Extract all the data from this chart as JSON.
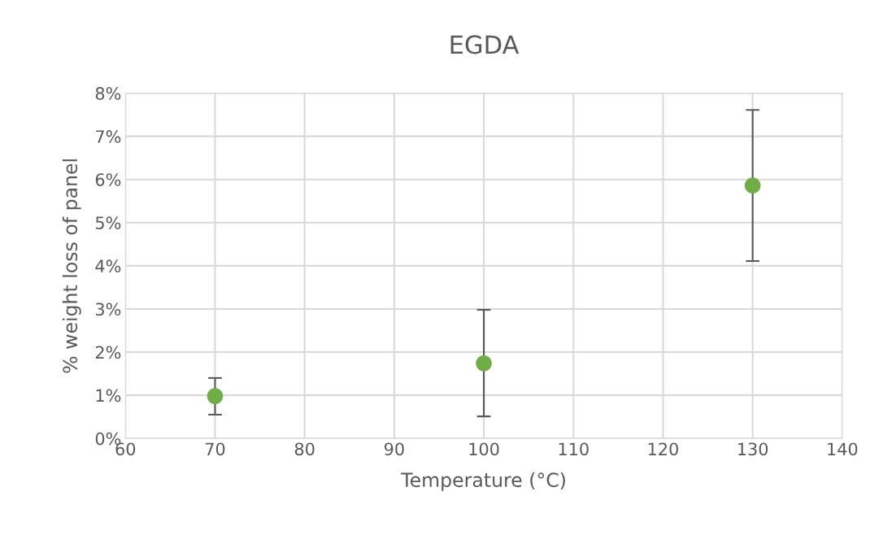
{
  "chart_data": {
    "type": "scatter",
    "title": "EGDA",
    "xlabel": "Temperature (°C)",
    "ylabel": "% weight loss of panel",
    "x": [
      70,
      100,
      130
    ],
    "series": [
      {
        "color": "#70ad47",
        "values": [
          0.98,
          1.74,
          5.86
        ],
        "errors": [
          [
            0.55,
            1.4
          ],
          [
            0.51,
            2.98
          ],
          [
            4.11,
            7.61
          ]
        ]
      }
    ],
    "xlim": [
      60,
      140
    ],
    "xticks": [
      60,
      70,
      80,
      90,
      100,
      110,
      120,
      130,
      140
    ],
    "ylim": [
      0,
      8
    ],
    "yticks": [
      {
        "value": 0,
        "label": "0%"
      },
      {
        "value": 1,
        "label": "1%"
      },
      {
        "value": 2,
        "label": "2%"
      },
      {
        "value": 3,
        "label": "3%"
      },
      {
        "value": 4,
        "label": "4%"
      },
      {
        "value": 5,
        "label": "5%"
      },
      {
        "value": 6,
        "label": "6%"
      },
      {
        "value": 7,
        "label": "7%"
      },
      {
        "value": 8,
        "label": "8%"
      }
    ],
    "grid": true,
    "marker": "circle"
  }
}
